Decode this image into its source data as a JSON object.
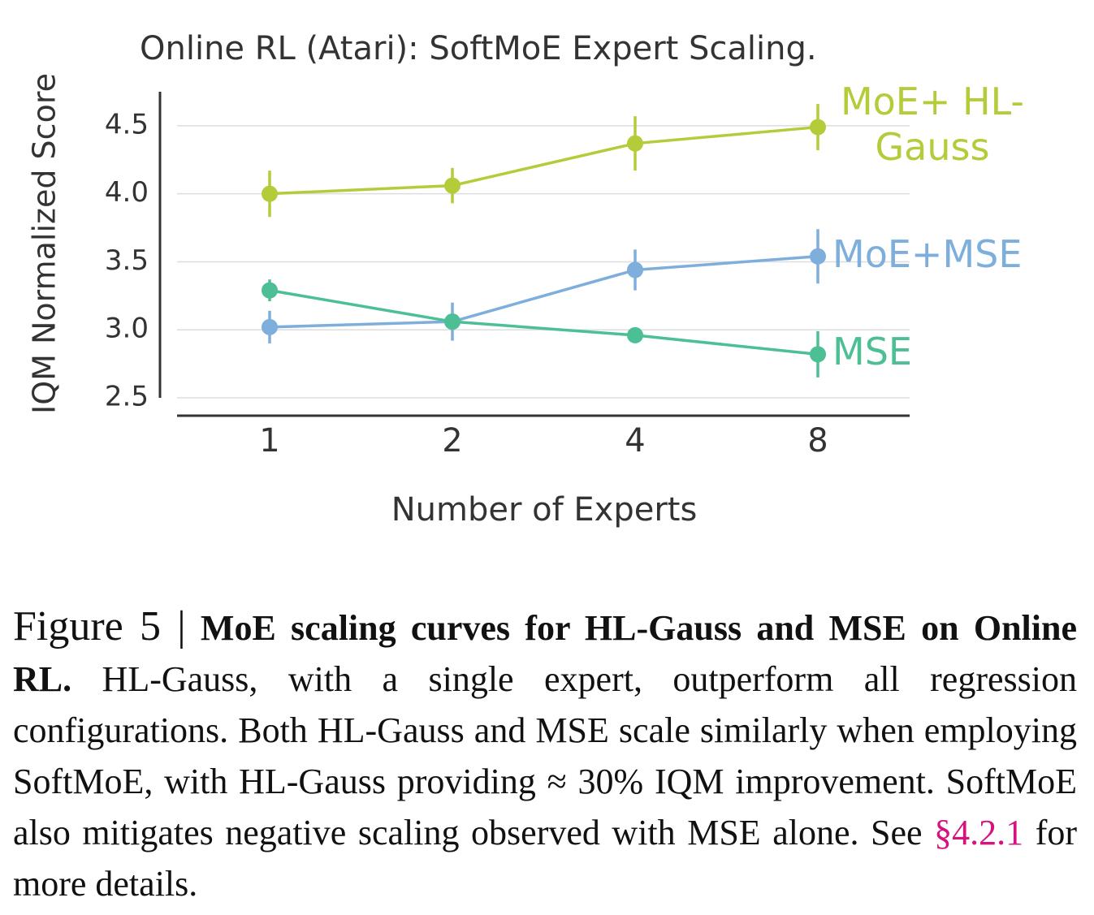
{
  "chart_data": {
    "type": "line",
    "title": "Online RL (Atari): SoftMoE Expert Scaling.",
    "x_label": "Number of Experts",
    "y_label": "IQM Normalized Score",
    "categories": [
      "1",
      "2",
      "4",
      "8"
    ],
    "ylim": [
      2.5,
      4.75
    ],
    "yticks": [
      {
        "value": 2.5,
        "label": "2.5"
      },
      {
        "value": 3,
        "label": "3.0"
      },
      {
        "value": 3.5,
        "label": "3.5"
      },
      {
        "value": 4,
        "label": "4.0"
      },
      {
        "value": 4.5,
        "label": "4.5"
      }
    ],
    "grid": true,
    "series": [
      {
        "name": "MoE+ HL-Gauss",
        "color": "#b5cc3a",
        "values": [
          4.0,
          4.06,
          4.37,
          4.49
        ],
        "errors": [
          0.17,
          0.13,
          0.2,
          0.17
        ]
      },
      {
        "name": "MoE+MSE",
        "color": "#7eaedc",
        "values": [
          3.02,
          3.06,
          3.44,
          3.54
        ],
        "errors": [
          0.12,
          0.14,
          0.15,
          0.2
        ]
      },
      {
        "name": "MSE",
        "color": "#4cbf94",
        "values": [
          3.29,
          3.06,
          2.96,
          2.82
        ],
        "errors": [
          0.08,
          0.03,
          0.03,
          0.17
        ]
      }
    ]
  },
  "caption": {
    "label": "Figure 5 |",
    "bold": "MoE scaling curves for HL-Gauss and MSE on Online RL.",
    "text": " HL-Gauss, with a single expert, outperform all regression configurations. Both HL-Gauss and MSE scale similarly when employing SoftMoE, with HL-Gauss providing ≈ 30% IQM improvement. SoftMoE also mitigates negative scaling observed with MSE alone. See ",
    "link": "§4.2.1",
    "text_after": " for more details."
  }
}
